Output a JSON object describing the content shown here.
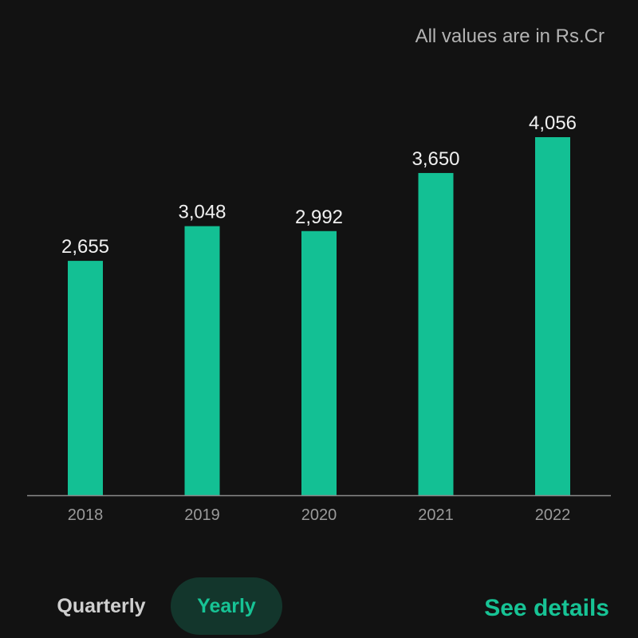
{
  "unit_note": "All values are in Rs.Cr",
  "period_toggle": {
    "options": [
      "Quarterly",
      "Yearly"
    ],
    "selected": "Yearly"
  },
  "see_details_label": "See details",
  "colors": {
    "background": "#121212",
    "bar": "#13c094",
    "accent": "#17c395",
    "axis": "#8a8a8a",
    "tick_label": "#9a9a9a",
    "value_label": "#f0f0f0",
    "toggle_selected_bg": "#13362c"
  },
  "chart_data": {
    "type": "bar",
    "categories": [
      "2018",
      "2019",
      "2020",
      "2021",
      "2022"
    ],
    "values": [
      2655,
      3048,
      2992,
      3650,
      4056
    ],
    "value_labels": [
      "2,655",
      "3,048",
      "2,992",
      "3,650",
      "4,056"
    ],
    "title": "",
    "xlabel": "",
    "ylabel": "",
    "ylim": [
      0,
      4500
    ],
    "grid": false,
    "legend": "none"
  }
}
